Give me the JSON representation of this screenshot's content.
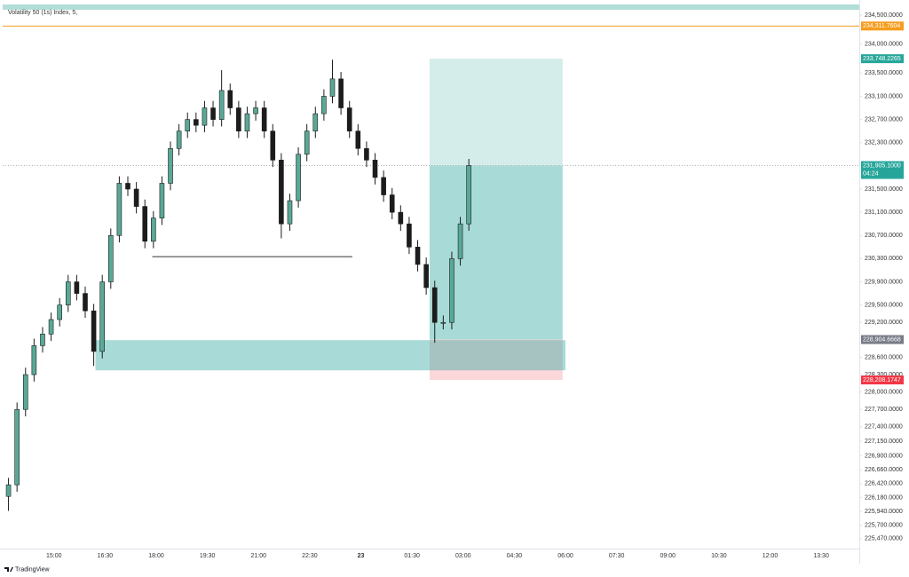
{
  "chart_data": {
    "type": "candlestick",
    "title": "Volatility 50 (1s) Index, 5,",
    "x": [
      -80,
      -65,
      -50,
      -35,
      -20,
      -5,
      10,
      25,
      40,
      55,
      70,
      85,
      100,
      115,
      130,
      145,
      160,
      175,
      190,
      205,
      220,
      235,
      250,
      265,
      280,
      295,
      310,
      325,
      340,
      355,
      370,
      385,
      400,
      415,
      430,
      445,
      460,
      475,
      490,
      505,
      520,
      535,
      550,
      565,
      580,
      595,
      610,
      625,
      640,
      655,
      670,
      685,
      700,
      715,
      730
    ],
    "open": [
      226200,
      226400,
      227700,
      228300,
      228800,
      229000,
      229250,
      229500,
      229900,
      229700,
      229400,
      228700,
      229900,
      230700,
      231600,
      231500,
      231200,
      230600,
      231000,
      231600,
      232200,
      232500,
      232700,
      232600,
      232900,
      232700,
      233200,
      232900,
      232500,
      232800,
      232900,
      232500,
      232000,
      230900,
      231300,
      232100,
      232500,
      232800,
      233100,
      233400,
      232900,
      232500,
      232200,
      232000,
      231700,
      231400,
      231100,
      230900,
      230500,
      230200,
      229800,
      229200,
      229200,
      230300,
      230900
    ],
    "high": [
      226520,
      227820,
      228420,
      228920,
      229120,
      229370,
      229620,
      230020,
      230020,
      229820,
      229520,
      230020,
      230820,
      231720,
      231720,
      231620,
      231320,
      231120,
      231720,
      232320,
      232620,
      232820,
      232820,
      233020,
      233020,
      233550,
      233320,
      233020,
      232920,
      233020,
      233020,
      232620,
      232120,
      231420,
      232220,
      232620,
      232920,
      233220,
      233730,
      233520,
      233020,
      232620,
      232320,
      232120,
      231820,
      231520,
      231220,
      231020,
      230620,
      230320,
      229920,
      229320,
      230420,
      231020,
      232020
    ],
    "low": [
      225950,
      226280,
      227580,
      228180,
      228680,
      228880,
      229130,
      229380,
      229580,
      229280,
      228450,
      228580,
      229780,
      230580,
      231380,
      231080,
      230480,
      230480,
      230880,
      231480,
      232080,
      232380,
      232480,
      232480,
      232580,
      232580,
      232780,
      232380,
      232380,
      232680,
      232380,
      231880,
      230650,
      230780,
      231180,
      231980,
      232380,
      232680,
      232980,
      232780,
      232380,
      232080,
      231880,
      231580,
      231280,
      230980,
      230780,
      230380,
      230080,
      229680,
      228850,
      229080,
      229080,
      230180,
      230780
    ],
    "close": [
      226400,
      227700,
      228300,
      228800,
      229000,
      229250,
      229500,
      229900,
      229700,
      229400,
      228700,
      229900,
      230700,
      231600,
      231500,
      231200,
      230600,
      231000,
      231600,
      232200,
      232500,
      232700,
      232600,
      232900,
      232700,
      233200,
      232900,
      232500,
      232800,
      232900,
      232500,
      232000,
      230900,
      231300,
      232100,
      232500,
      232800,
      233100,
      233400,
      232900,
      232500,
      232200,
      232000,
      231700,
      231400,
      231100,
      230900,
      230500,
      230200,
      229800,
      229200,
      229200,
      230300,
      230900,
      231905
    ],
    "up_color": "#5aa897",
    "down_color": "#1c1c1c",
    "xlim": [
      -84,
      1417
    ],
    "ylim": [
      225300,
      234684
    ],
    "xticks": [
      {
        "value": 0,
        "label": "15:00"
      },
      {
        "value": 90,
        "label": "16:30"
      },
      {
        "value": 180,
        "label": "18:00"
      },
      {
        "value": 270,
        "label": "19:30"
      },
      {
        "value": 360,
        "label": "21:00"
      },
      {
        "value": 450,
        "label": "22:30"
      },
      {
        "value": 540,
        "label": "23"
      },
      {
        "value": 630,
        "label": "01:30"
      },
      {
        "value": 720,
        "label": "03:00"
      },
      {
        "value": 810,
        "label": "04:30"
      },
      {
        "value": 900,
        "label": "06:00"
      },
      {
        "value": 990,
        "label": "07:30"
      },
      {
        "value": 1080,
        "label": "09:00"
      },
      {
        "value": 1170,
        "label": "10:30"
      },
      {
        "value": 1260,
        "label": "12:00"
      },
      {
        "value": 1350,
        "label": "13:30"
      }
    ],
    "yticks": [
      {
        "value": 234500,
        "label": "234,500.0000"
      },
      {
        "value": 234000,
        "label": "234,000.0000"
      },
      {
        "value": 233500,
        "label": "233,500.0000"
      },
      {
        "value": 233100,
        "label": "233,100.0000"
      },
      {
        "value": 232700,
        "label": "232,700.0000"
      },
      {
        "value": 232300,
        "label": "232,300.0000"
      },
      {
        "value": 231500,
        "label": "231,500.0000"
      },
      {
        "value": 231100,
        "label": "231,100.0000"
      },
      {
        "value": 230700,
        "label": "230,700.0000"
      },
      {
        "value": 230300,
        "label": "230,300.0000"
      },
      {
        "value": 229900,
        "label": "229,900.0000"
      },
      {
        "value": 229500,
        "label": "229,500.0000"
      },
      {
        "value": 229200,
        "label": "229,200.0000"
      },
      {
        "value": 228600,
        "label": "228,600.0000"
      },
      {
        "value": 228300,
        "label": "228,300.0000"
      },
      {
        "value": 228000,
        "label": "228,000.0000"
      },
      {
        "value": 227700,
        "label": "227,700.0000"
      },
      {
        "value": 227400,
        "label": "227,400.0000"
      },
      {
        "value": 227150,
        "label": "227,150.0000"
      },
      {
        "value": 226900,
        "label": "226,900.0000"
      },
      {
        "value": 226660,
        "label": "226,660.0000"
      },
      {
        "value": 226420,
        "label": "226,420.0000"
      },
      {
        "value": 226180,
        "label": "226,180.0000"
      },
      {
        "value": 225940,
        "label": "225,940.0000"
      },
      {
        "value": 225700,
        "label": "225,700.0000"
      },
      {
        "value": 225470,
        "label": "225,470.0000"
      }
    ],
    "levels": [
      {
        "value": 234311.7604,
        "label": "234,311.7604",
        "color": "#f59d1e"
      }
    ],
    "hline": {
      "x": [
        173,
        525
      ],
      "value": 230335
    },
    "zone": {
      "x": [
        73,
        900
      ],
      "y": [
        228374,
        228895
      ],
      "color": "#26a69a"
    },
    "position": {
      "x": [
        661,
        895
      ],
      "target": {
        "value": 233748.2265,
        "label": "233,748.2265"
      },
      "entry": {
        "value": 228904.6668,
        "label": "228,904.6668"
      },
      "stop": {
        "value": 228208.1747,
        "label": "228,208.1747"
      },
      "current": {
        "value": 231905.1,
        "label": "231,905.1000",
        "countdown": "04:24"
      },
      "profit_color": "#26a69a",
      "loss_color": "#f23645",
      "entry_color": "#787b86"
    }
  },
  "branding": "TradingView"
}
